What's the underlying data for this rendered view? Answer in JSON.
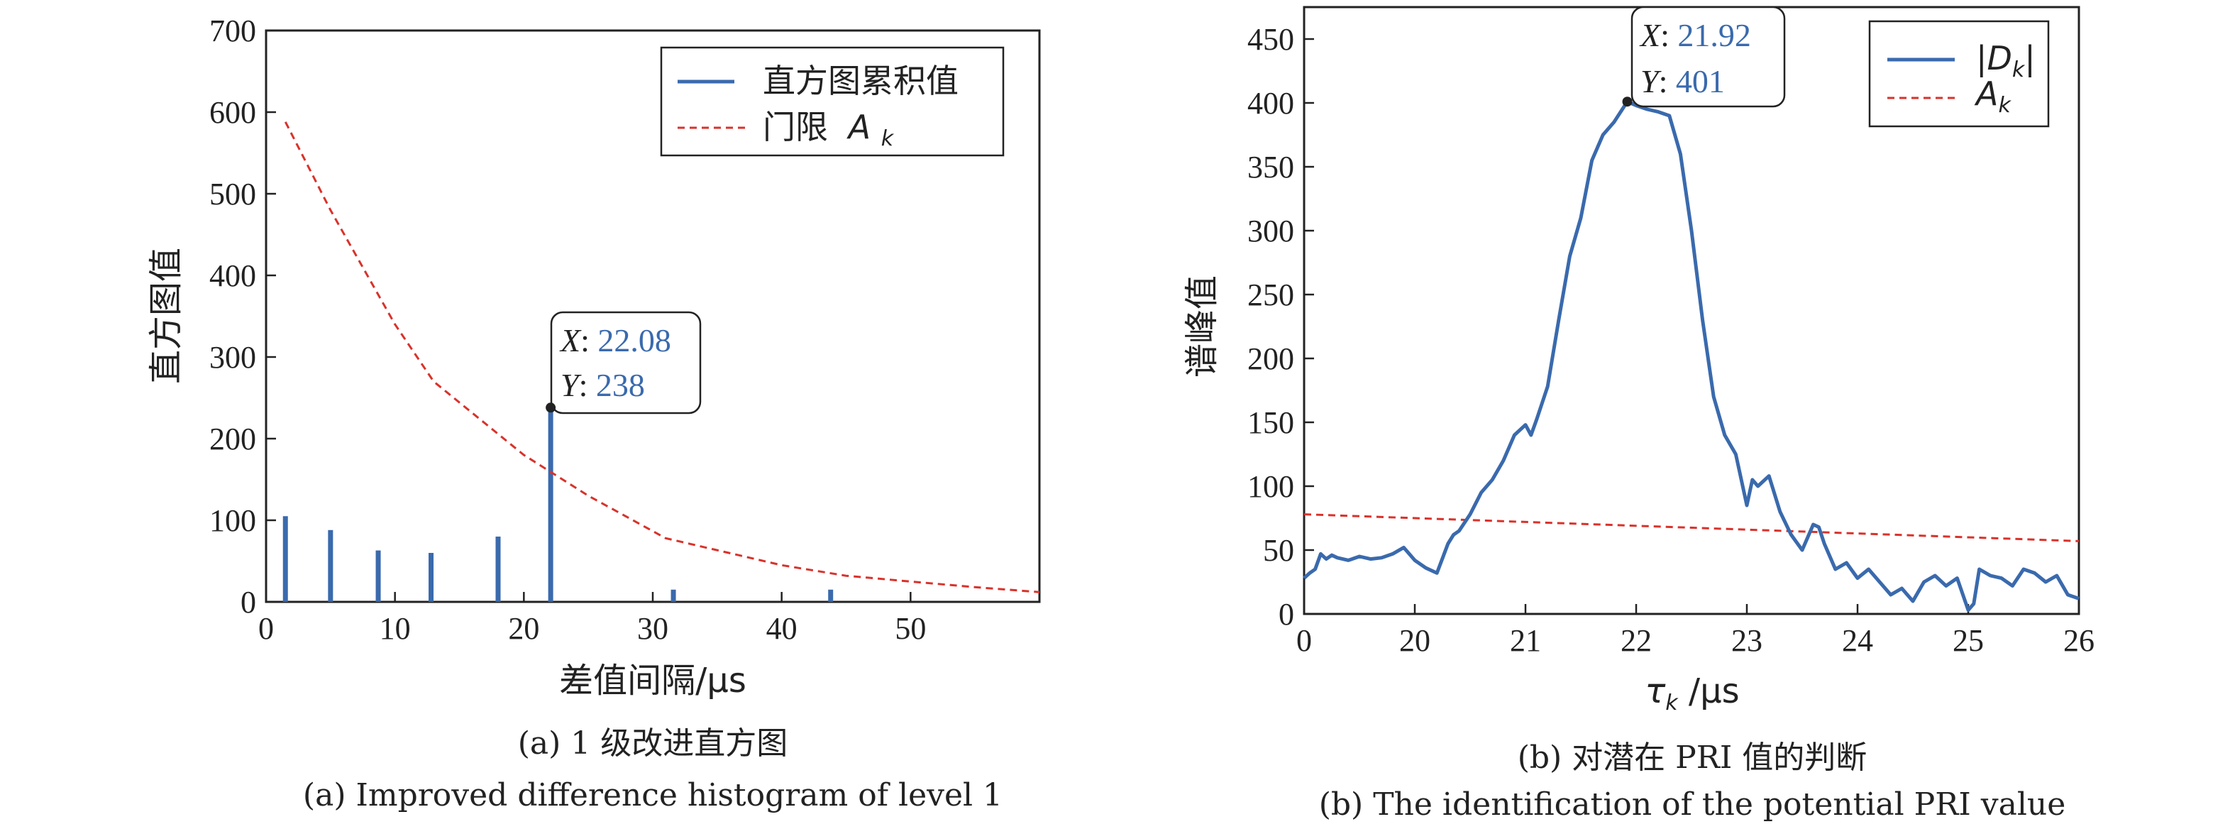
{
  "chart_data": [
    {
      "type": "bar",
      "xlabel": "差值间隔/μs",
      "ylabel": "直方图值",
      "xlim": [
        0,
        60
      ],
      "ylim": [
        0,
        700
      ],
      "xticks": [
        "0",
        "10",
        "20",
        "30",
        "40",
        "50"
      ],
      "yticks": [
        "0",
        "100",
        "200",
        "300",
        "400",
        "500",
        "600",
        "700"
      ],
      "legend_placement": "top-right",
      "series": [
        {
          "name": "直方图累积值",
          "style": "bar",
          "color": "#3a6aad",
          "x": [
            1.5,
            5,
            8.7,
            12.8,
            18,
            22.08,
            31.6,
            43.8
          ],
          "values": [
            105,
            88,
            63,
            60,
            80,
            238,
            15,
            15
          ]
        },
        {
          "name": "门限",
          "name_math": "A",
          "name_sub": "k",
          "style": "dashed-line",
          "color": "#d9322b",
          "x": [
            1.5,
            5,
            10,
            13,
            20,
            25,
            31,
            40,
            45,
            50,
            55,
            60
          ],
          "values": [
            588,
            480,
            340,
            270,
            180,
            130,
            78,
            45,
            32,
            25,
            18,
            12
          ]
        }
      ],
      "annotation": {
        "x_label": "X",
        "x_value": "22.08",
        "y_label": "Y",
        "y_value": "238",
        "point_x": 22.08,
        "point_y": 238
      },
      "caption_cn": "(a) 1 级改进直方图",
      "caption_en": "(a) Improved difference histogram of level 1"
    },
    {
      "type": "line",
      "xlabel_math": "τ",
      "xlabel_sub": "k",
      "xlabel_unit": " /μs",
      "ylabel": "谱峰值",
      "xlim": [
        19,
        26
      ],
      "ylim": [
        0,
        475
      ],
      "xticks": [
        {
          "v": 19,
          "t": "0"
        },
        {
          "v": 20,
          "t": "20"
        },
        {
          "v": 21,
          "t": "21"
        },
        {
          "v": 22,
          "t": "22"
        },
        {
          "v": 23,
          "t": "23"
        },
        {
          "v": 24,
          "t": "24"
        },
        {
          "v": 25,
          "t": "25"
        },
        {
          "v": 26,
          "t": "26"
        }
      ],
      "yticks": [
        "0",
        "50",
        "100",
        "150",
        "200",
        "250",
        "300",
        "350",
        "400",
        "450"
      ],
      "legend_placement": "top-right",
      "series": [
        {
          "name_math": "|D",
          "name_sub": "k",
          "name_tail": "|",
          "style": "line",
          "color": "#3a6aad",
          "x": [
            19.0,
            19.05,
            19.1,
            19.15,
            19.2,
            19.25,
            19.3,
            19.4,
            19.5,
            19.6,
            19.7,
            19.8,
            19.9,
            20.0,
            20.1,
            20.2,
            20.3,
            20.35,
            20.4,
            20.5,
            20.6,
            20.7,
            20.8,
            20.9,
            21.0,
            21.05,
            21.1,
            21.15,
            21.2,
            21.3,
            21.4,
            21.5,
            21.6,
            21.7,
            21.8,
            21.92,
            22.0,
            22.1,
            22.2,
            22.3,
            22.4,
            22.5,
            22.6,
            22.7,
            22.8,
            22.9,
            23.0,
            23.05,
            23.1,
            23.2,
            23.3,
            23.4,
            23.5,
            23.6,
            23.65,
            23.7,
            23.8,
            23.9,
            24.0,
            24.1,
            24.2,
            24.3,
            24.4,
            24.5,
            24.6,
            24.7,
            24.8,
            24.9,
            25.0,
            25.05,
            25.1,
            25.2,
            25.3,
            25.4,
            25.5,
            25.6,
            25.7,
            25.8,
            25.9,
            26.0
          ],
          "values": [
            28,
            32,
            35,
            47,
            43,
            46,
            44,
            42,
            45,
            43,
            44,
            47,
            52,
            42,
            36,
            32,
            55,
            62,
            65,
            78,
            95,
            105,
            120,
            140,
            148,
            140,
            152,
            165,
            178,
            230,
            280,
            310,
            355,
            375,
            385,
            401,
            398,
            395,
            393,
            390,
            360,
            300,
            230,
            170,
            140,
            125,
            85,
            105,
            100,
            108,
            80,
            62,
            50,
            70,
            68,
            55,
            35,
            40,
            28,
            35,
            25,
            15,
            20,
            10,
            25,
            30,
            22,
            28,
            3,
            8,
            35,
            30,
            28,
            22,
            35,
            32,
            25,
            30,
            15,
            12
          ],
          "legend_label_visible": true
        },
        {
          "name_math": "A",
          "name_sub": "k",
          "style": "dashed-line",
          "color": "#d9322b",
          "x": [
            19,
            26
          ],
          "values": [
            78,
            57
          ]
        }
      ],
      "annotation": {
        "x_label": "X",
        "x_value": "21.92",
        "y_label": "Y",
        "y_value": "401",
        "point_x": 21.92,
        "point_y": 401
      },
      "caption_cn": "(b) 对潜在 PRI 值的判断",
      "caption_en": "(b) The identification of the potential PRI value"
    }
  ]
}
